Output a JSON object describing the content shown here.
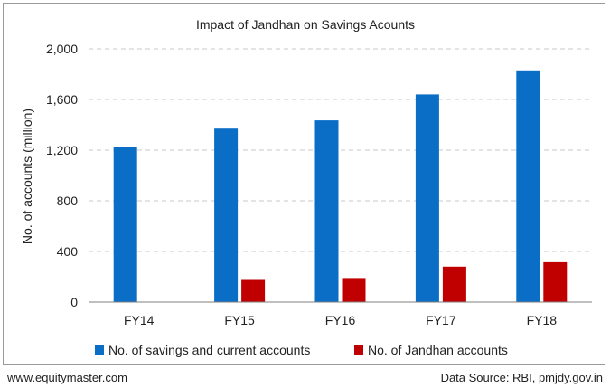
{
  "chart_data": {
    "type": "bar",
    "title": "Impact of Jandhan on Savings Acounts",
    "xlabel": "",
    "ylabel": "No. of accounts (million)",
    "ylim": [
      0,
      2000
    ],
    "yticks": [
      0,
      400,
      800,
      1200,
      1600,
      2000
    ],
    "ytick_labels": [
      "0",
      "400",
      "800",
      "1,200",
      "1,600",
      "2,000"
    ],
    "grid": true,
    "legend_position": "bottom",
    "categories": [
      "FY14",
      "FY15",
      "FY16",
      "FY17",
      "FY18"
    ],
    "series": [
      {
        "name": "No. of savings and current accounts",
        "color": "#0a6ec7",
        "values": [
          1225,
          1370,
          1435,
          1640,
          1830
        ]
      },
      {
        "name": "No. of Jandhan accounts",
        "color": "#c00000",
        "values": [
          0,
          175,
          190,
          280,
          315
        ]
      }
    ]
  },
  "footer": {
    "website": "www.equitymaster.com",
    "source": "Data Source: RBI, pmjdy.gov.in"
  }
}
